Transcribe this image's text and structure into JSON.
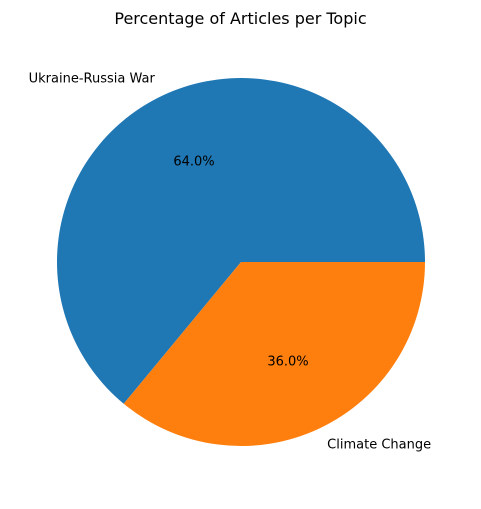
{
  "chart_data": {
    "type": "pie",
    "title": "Percentage of Articles per Topic",
    "categories": [
      "Ukraine-Russia War",
      "Climate Change"
    ],
    "values": [
      64.0,
      36.0
    ],
    "percent_labels": [
      "64.0%",
      "36.0%"
    ],
    "colors": [
      "#1f77b4",
      "#ff7f0e"
    ],
    "start_angle_deg": 0,
    "direction": "counterclockwise",
    "legend": "none"
  }
}
